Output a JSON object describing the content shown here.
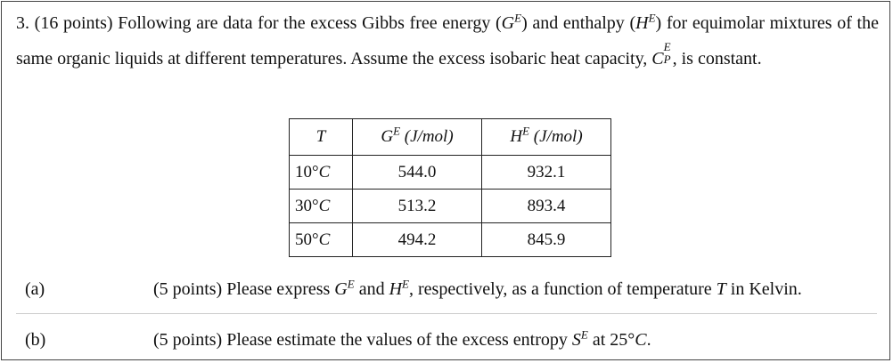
{
  "problem": {
    "intro": [
      "3. (16 points) Following are data for the excess Gibbs free energy (",
      "G",
      "E",
      ") and enthalpy (",
      "H",
      "E",
      ") for equimolar mixtures of the same organic liquids at different temperatures. Assume the excess isobaric heat capacity, ",
      "C",
      "E",
      "P",
      ", is constant."
    ],
    "table": {
      "header": [
        [
          "T"
        ],
        [
          "G",
          "E",
          "(J/mol)"
        ],
        [
          "H",
          "E",
          "(J/mol)"
        ]
      ],
      "rows": [
        [
          "10°",
          "C",
          "544.0",
          "932.1"
        ],
        [
          "30°",
          "C",
          "513.2",
          "893.4"
        ],
        [
          "50°",
          "C",
          "494.2",
          "845.9"
        ]
      ]
    },
    "parts": [
      {
        "label": "(a)",
        "text": [
          "(5 points) Please express ",
          "G",
          "E",
          " and ",
          "H",
          "E",
          ", respectively, as a function of temperature ",
          "T",
          " in Kelvin."
        ]
      },
      {
        "label": "(b)",
        "text": [
          "(5 points) Please estimate the values of the excess entropy ",
          "S",
          "E",
          " at 25°",
          "C",
          "."
        ]
      }
    ]
  }
}
